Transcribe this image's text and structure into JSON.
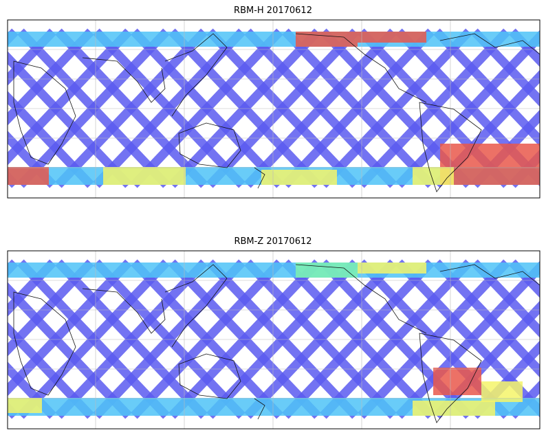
{
  "figure": {
    "panels": [
      {
        "title": "RBM-H 20170612"
      },
      {
        "title": "RBM-Z 20170612"
      }
    ]
  },
  "colors": {
    "low": "#5b5bf0",
    "mid_low": "#4fc3f7",
    "mid": "#7ef0b0",
    "mid_high": "#f5f56a",
    "high": "#e9584b",
    "coast": "#111111",
    "grid": "#bbbbbb"
  }
}
